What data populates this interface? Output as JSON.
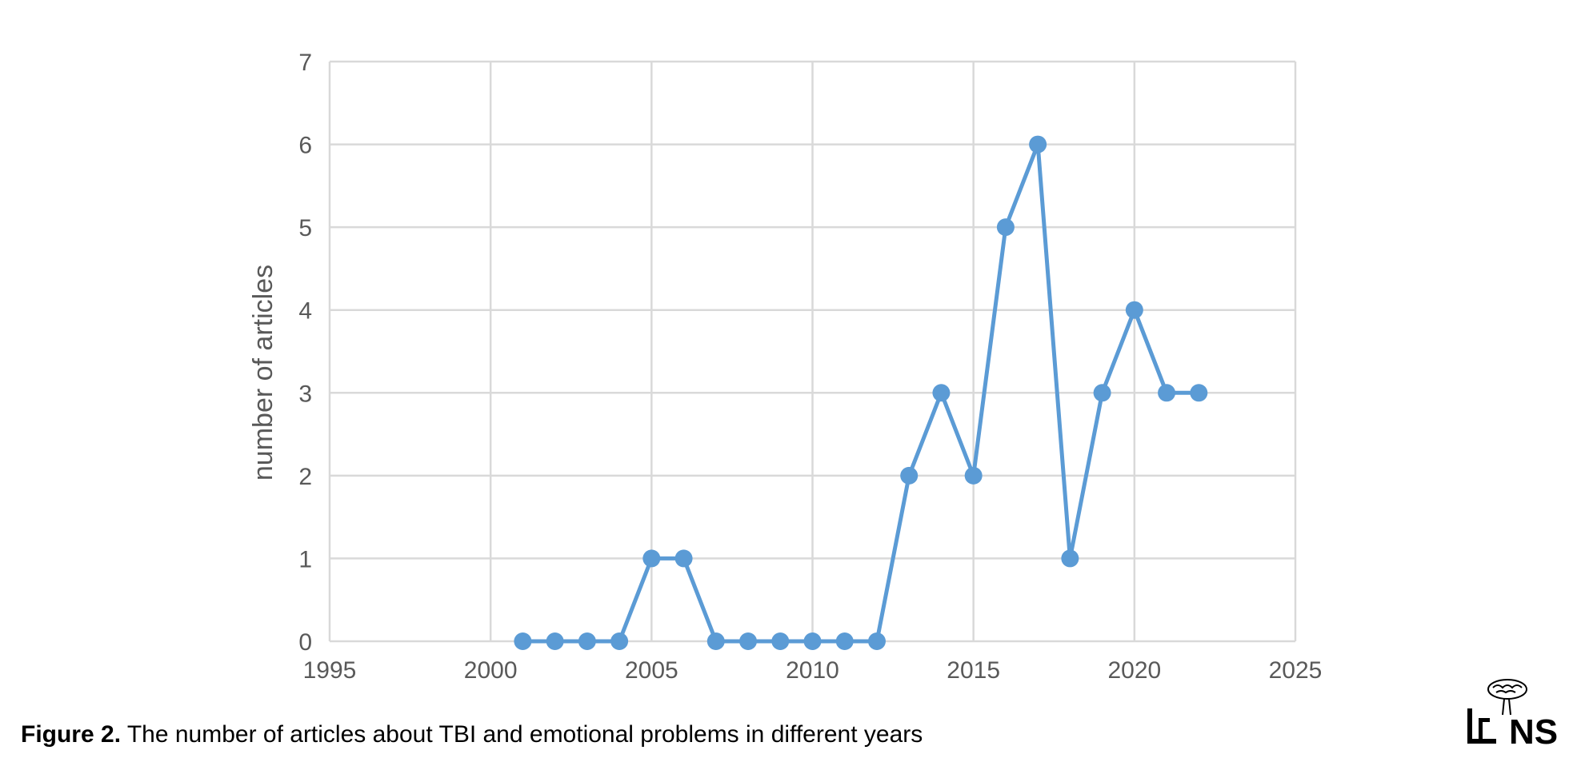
{
  "caption": {
    "label": "Figure 2.",
    "text": " The number of articles about TBI and emotional problems in different years"
  },
  "logo": {
    "text": "NS"
  },
  "chart_data": {
    "type": "line",
    "title": "",
    "xlabel": "",
    "ylabel": "number of articles",
    "xlim": [
      1995,
      2025
    ],
    "ylim": [
      0,
      7
    ],
    "xticks": [
      1995,
      2000,
      2005,
      2010,
      2015,
      2020,
      2025
    ],
    "yticks": [
      0,
      1,
      2,
      3,
      4,
      5,
      6,
      7
    ],
    "grid": true,
    "legend": "none",
    "color": "#5b9bd5",
    "series": [
      {
        "x": [
          2001,
          2002,
          2003,
          2004,
          2005,
          2006,
          2007,
          2008,
          2009,
          2010,
          2011,
          2012,
          2013,
          2014,
          2015,
          2016,
          2017,
          2018,
          2019,
          2020,
          2021,
          2022
        ],
        "y": [
          0,
          0,
          0,
          0,
          1,
          1,
          0,
          0,
          0,
          0,
          0,
          0,
          2,
          3,
          2,
          5,
          6,
          1,
          3,
          4,
          3,
          3
        ]
      }
    ]
  }
}
